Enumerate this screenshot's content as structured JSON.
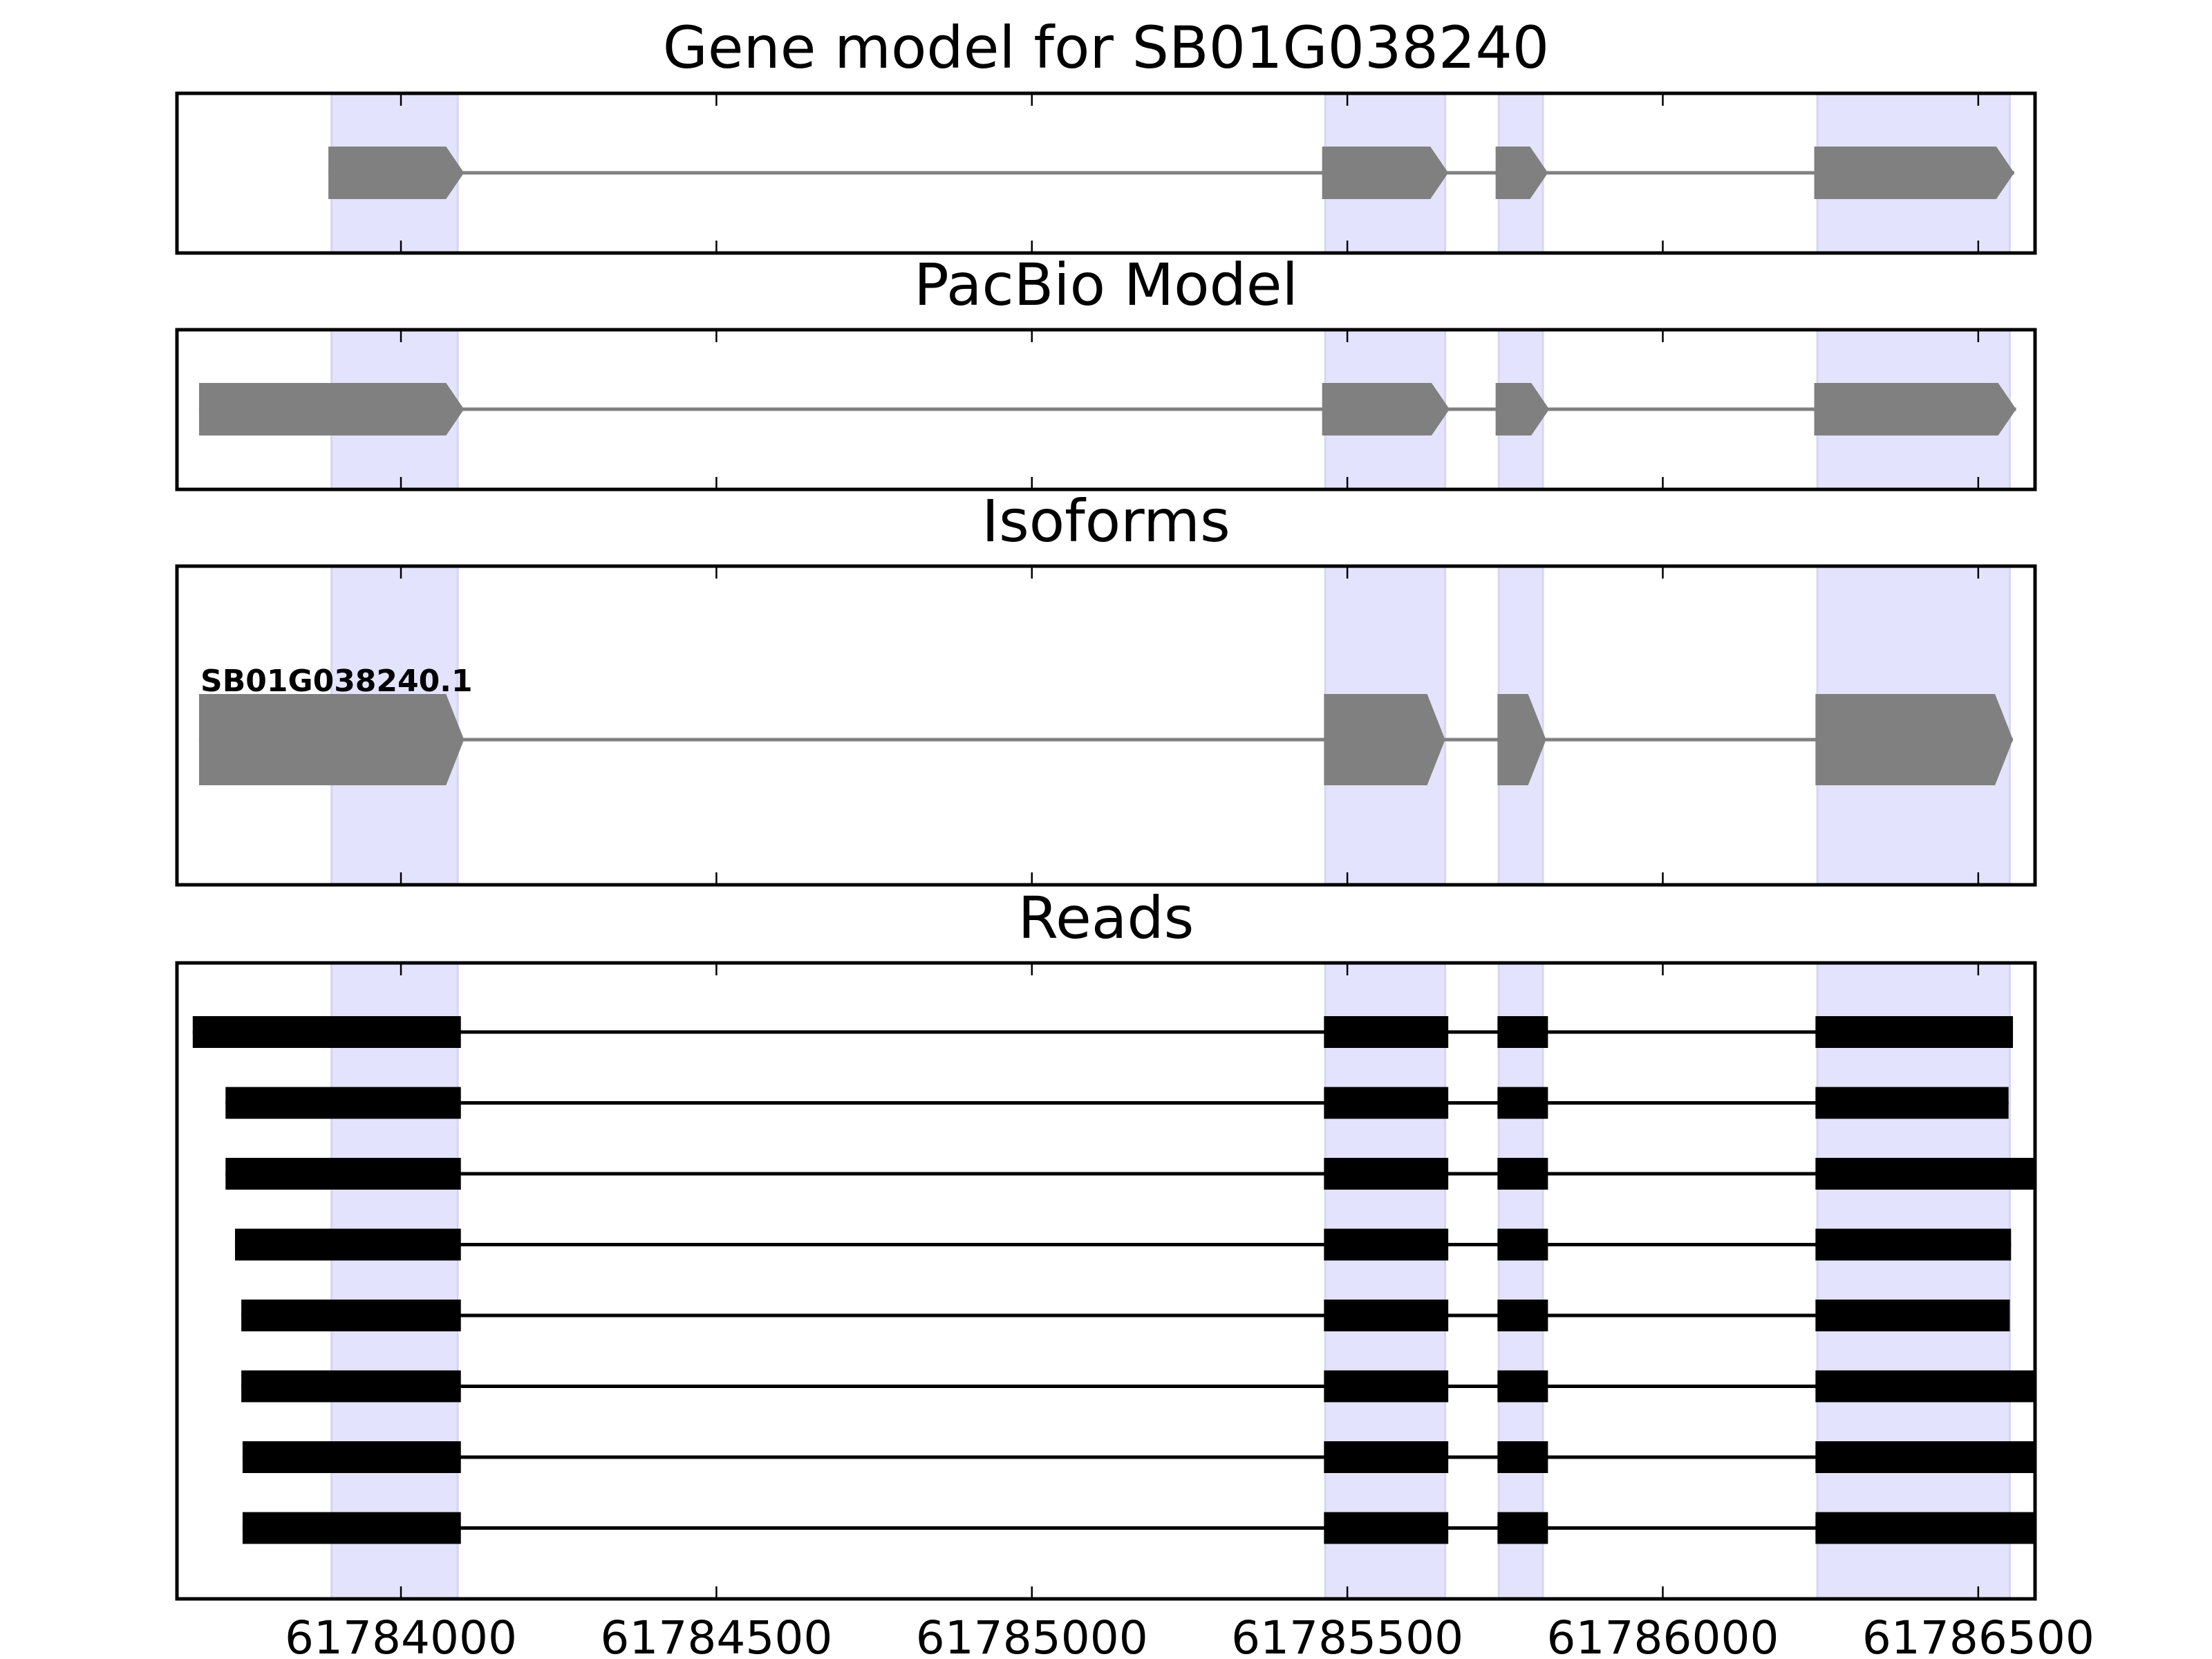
{
  "titles": {
    "gene_model": "Gene model for SB01G038240",
    "pacbio": "PacBio Model",
    "isoforms": "Isoforms",
    "reads": "Reads"
  },
  "isoform_label": "SB01G038240.1",
  "colors": {
    "exon_fill": "#808080",
    "intron_line": "#808080",
    "highlight": "#e3e3fd",
    "highlight_edge": "#d6d6f2",
    "read": "#000000",
    "axes": "#000000"
  },
  "chart_data": {
    "type": "gene-track",
    "xlim": [
      61783645,
      61786590
    ],
    "xticks": [
      61784000,
      61784500,
      61785000,
      61785500,
      61786000,
      61786500
    ],
    "xtick_labels": [
      "61784000",
      "61784500",
      "61785000",
      "61785500",
      "61786000",
      "61786500"
    ],
    "highlight_regions": [
      [
        61783890,
        61784090
      ],
      [
        61785465,
        61785655
      ],
      [
        61785740,
        61785810
      ],
      [
        61786245,
        61786550
      ]
    ],
    "gene_model": {
      "exons": [
        [
          61783885,
          61784100
        ],
        [
          61785460,
          61785660
        ],
        [
          61785735,
          61785818
        ],
        [
          61786240,
          61786557
        ]
      ]
    },
    "pacbio_model": {
      "exons": [
        [
          61783680,
          61784100
        ],
        [
          61785460,
          61785662
        ],
        [
          61785735,
          61785820
        ],
        [
          61786240,
          61786560
        ]
      ]
    },
    "isoforms": [
      {
        "name": "SB01G038240.1",
        "exons": [
          [
            61783680,
            61784100
          ],
          [
            61785463,
            61785655
          ],
          [
            61785738,
            61785815
          ],
          [
            61786242,
            61786555
          ]
        ]
      }
    ],
    "reads": [
      {
        "exons": [
          [
            61783670,
            61784095
          ],
          [
            61785463,
            61785660
          ],
          [
            61785738,
            61785818
          ],
          [
            61786242,
            61786555
          ]
        ]
      },
      {
        "exons": [
          [
            61783722,
            61784095
          ],
          [
            61785463,
            61785660
          ],
          [
            61785738,
            61785818
          ],
          [
            61786242,
            61786548
          ]
        ]
      },
      {
        "exons": [
          [
            61783722,
            61784095
          ],
          [
            61785463,
            61785660
          ],
          [
            61785738,
            61785818
          ],
          [
            61786242,
            61786590
          ]
        ]
      },
      {
        "exons": [
          [
            61783737,
            61784095
          ],
          [
            61785463,
            61785660
          ],
          [
            61785738,
            61785818
          ],
          [
            61786242,
            61786552
          ]
        ]
      },
      {
        "exons": [
          [
            61783747,
            61784095
          ],
          [
            61785463,
            61785660
          ],
          [
            61785738,
            61785818
          ],
          [
            61786242,
            61786550
          ]
        ]
      },
      {
        "exons": [
          [
            61783747,
            61784095
          ],
          [
            61785463,
            61785660
          ],
          [
            61785738,
            61785818
          ],
          [
            61786242,
            61786590
          ]
        ]
      },
      {
        "exons": [
          [
            61783749,
            61784095
          ],
          [
            61785463,
            61785660
          ],
          [
            61785738,
            61785818
          ],
          [
            61786242,
            61786590
          ]
        ]
      },
      {
        "exons": [
          [
            61783749,
            61784095
          ],
          [
            61785463,
            61785660
          ],
          [
            61785738,
            61785818
          ],
          [
            61786242,
            61786590
          ]
        ]
      }
    ]
  }
}
